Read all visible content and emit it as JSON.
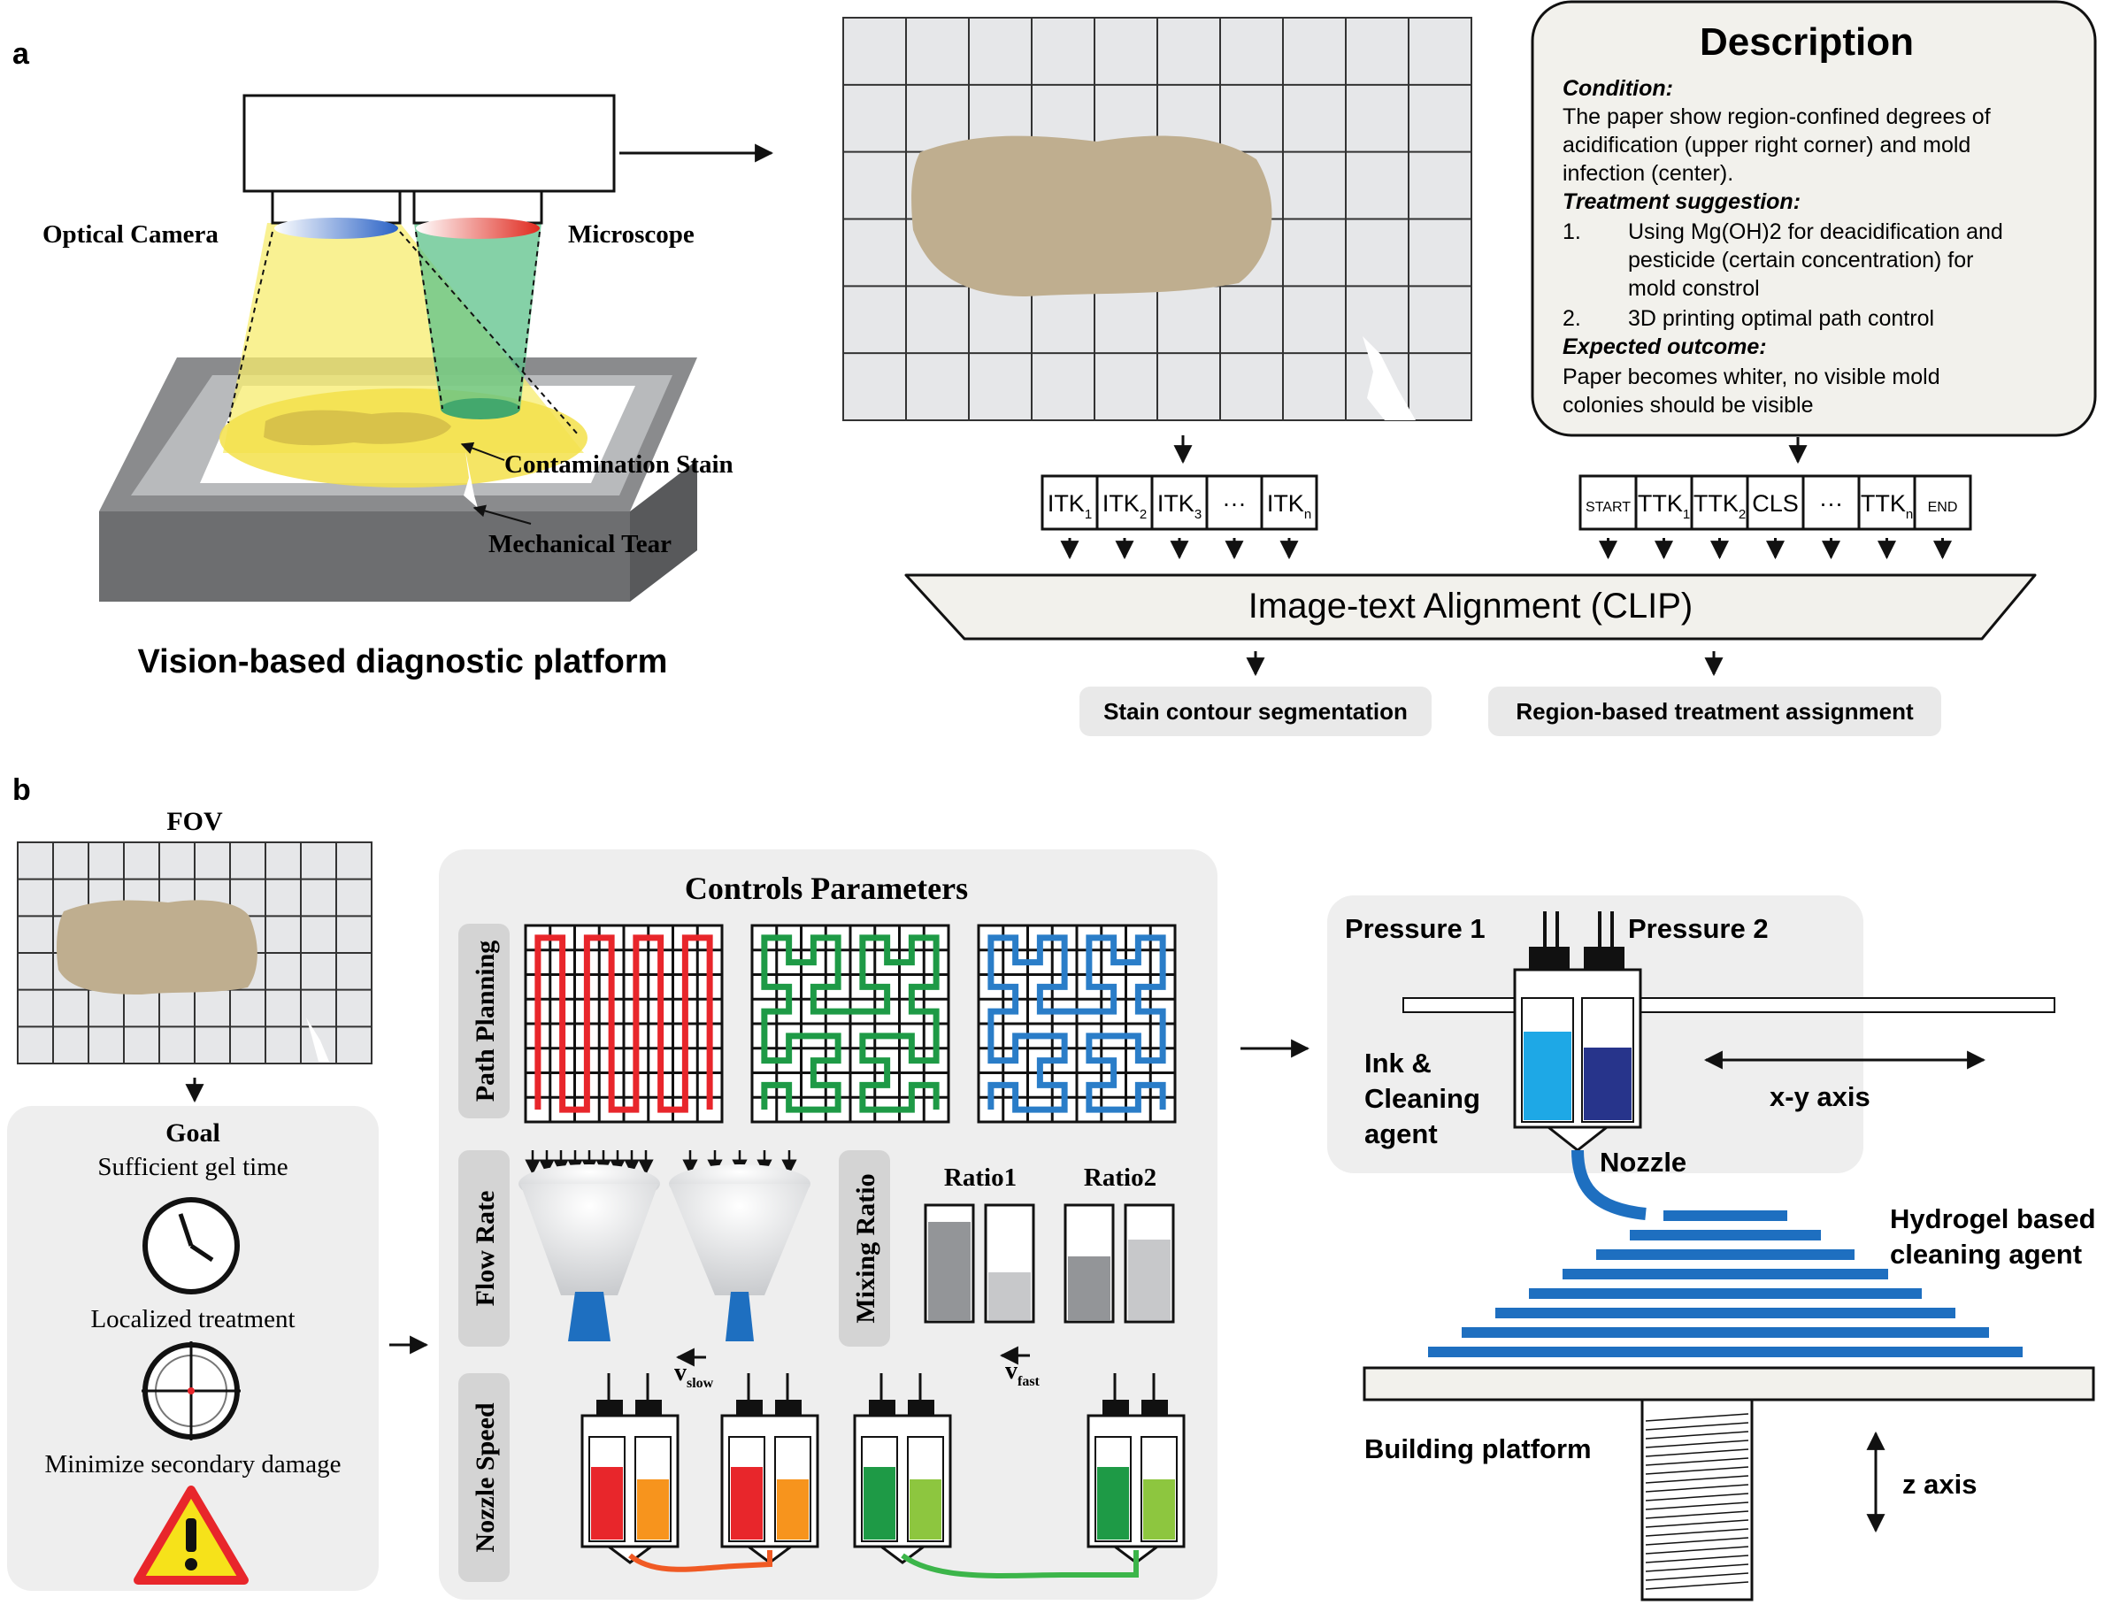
{
  "panel_a": {
    "label": "a",
    "camera_label": "Optical Camera",
    "microscope_label": "Microscope",
    "stain_label": "Contamination Stain",
    "tear_label": "Mechanical Tear",
    "platform_title": "Vision-based diagnostic platform",
    "description": {
      "title": "Description",
      "condition_head": "Condition:",
      "condition_lines": [
        "The paper show region-confined degrees of",
        "acidification (upper right corner) and mold",
        "infection (center)."
      ],
      "treatment_head": "Treatment suggestion:",
      "item1_num": "1.",
      "item1_lines": [
        "Using Mg(OH)2 for deacidification and",
        "pesticide (certain concentration) for",
        "mold constrol"
      ],
      "item2_num": "2.",
      "item2_lines": [
        "3D printing optimal path control"
      ],
      "outcome_head": "Expected outcome:",
      "outcome_lines": [
        "Paper becomes whiter, no visible mold",
        "colonies should be visible"
      ]
    },
    "image_tokens": [
      {
        "base": "ITK",
        "sub": "1"
      },
      {
        "base": "ITK",
        "sub": "2"
      },
      {
        "base": "ITK",
        "sub": "3"
      },
      {
        "base": "···",
        "sub": ""
      },
      {
        "base": "ITK",
        "sub": "n"
      }
    ],
    "text_tokens": [
      {
        "base": "START",
        "sub": "",
        "small": true
      },
      {
        "base": "TTK",
        "sub": "1",
        "small": false
      },
      {
        "base": "TTK",
        "sub": "2",
        "small": false
      },
      {
        "base": "CLS",
        "sub": "",
        "small": false
      },
      {
        "base": "···",
        "sub": "",
        "small": false
      },
      {
        "base": "TTK",
        "sub": "n",
        "small": false
      },
      {
        "base": "END",
        "sub": "",
        "small": true
      }
    ],
    "alignment_label": "Image-text Alignment (CLIP)",
    "output1": "Stain contour segmentation",
    "output2": "Region-based treatment assignment"
  },
  "panel_b": {
    "label": "b",
    "fov_label": "FOV",
    "goal_title": "Goal",
    "goals": [
      "Sufficient gel time",
      "Localized treatment",
      "Minimize secondary damage"
    ],
    "controls_title": "Controls Parameters",
    "path_planning_label": "Path Planning",
    "flow_rate_label": "Flow Rate",
    "mixing_ratio_label": "Mixing Ratio",
    "ratio1_label": "Ratio1",
    "ratio2_label": "Ratio2",
    "nozzle_speed_label": "Nozzle Speed",
    "v_slow": {
      "base": "v",
      "sub": "slow"
    },
    "v_fast": {
      "base": "v",
      "sub": "fast"
    },
    "pressure1": "Pressure 1",
    "pressure2": "Pressure 2",
    "ink_lines": [
      "Ink &",
      "Cleaning",
      "agent"
    ],
    "xy_axis": "x-y axis",
    "nozzle": "Nozzle",
    "hydrogel_lines": [
      "Hydrogel based",
      "cleaning agent"
    ],
    "building_platform": "Building platform",
    "z_axis": "z axis"
  },
  "colors": {
    "stain": "#bfae8f",
    "yellow_beam": "#f7ec6e",
    "green_beam": "#5cc28a",
    "path_red": "#e8262b",
    "path_green": "#1e9a46",
    "path_blue": "#2a7dc8",
    "ink_blue": "#1e6fc0",
    "cyan": "#1ea8e6",
    "navy": "#27348b",
    "panel_gray": "#eeeeee"
  }
}
